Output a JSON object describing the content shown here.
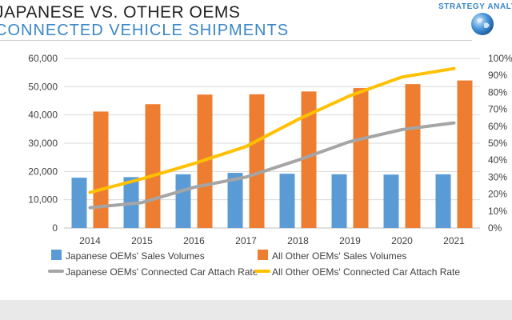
{
  "header": {
    "title": "JAPANESE VS. OTHER OEMS",
    "subtitle": "CONNECTED VEHICLE SHIPMENTS",
    "brand": "STRATEGY ANALYTICS"
  },
  "chart_data": {
    "type": "bar-line-combo",
    "categories": [
      "2014",
      "2015",
      "2016",
      "2017",
      "2018",
      "2019",
      "2020",
      "2021"
    ],
    "left_axis": {
      "min": 0,
      "max": 60000,
      "step": 10000,
      "ticks": [
        "0",
        "10,000",
        "20,000",
        "30,000",
        "40,000",
        "50,000",
        "60,000"
      ]
    },
    "right_axis": {
      "min": 0,
      "max": 100,
      "step": 10,
      "ticks": [
        "0%",
        "10%",
        "20%",
        "30%",
        "40%",
        "50%",
        "60%",
        "70%",
        "80%",
        "90%",
        "100%"
      ]
    },
    "series": [
      {
        "name": "Japanese OEMs' Sales Volumes",
        "kind": "bar",
        "axis": "left",
        "color": "#5b9bd5",
        "values": [
          17800,
          18000,
          19000,
          19500,
          19200,
          19000,
          18900,
          19000
        ]
      },
      {
        "name": "All Other OEMs' Sales Volumes",
        "kind": "bar",
        "axis": "left",
        "color": "#ed7d31",
        "values": [
          41200,
          43800,
          47200,
          47300,
          48300,
          49500,
          50900,
          52200
        ]
      },
      {
        "name": "Japanese OEMs' Connected Car Attach Rate",
        "kind": "line",
        "axis": "right",
        "color": "#a5a5a5",
        "values": [
          12,
          15,
          24,
          30,
          40,
          51,
          58,
          62
        ]
      },
      {
        "name": "All Other OEMs' Connected Car Attach Rate",
        "kind": "line",
        "axis": "right",
        "color": "#ffc000",
        "values": [
          21,
          29,
          38,
          48,
          64,
          78,
          89,
          94
        ]
      }
    ],
    "legend_position": "bottom",
    "grid": true
  }
}
